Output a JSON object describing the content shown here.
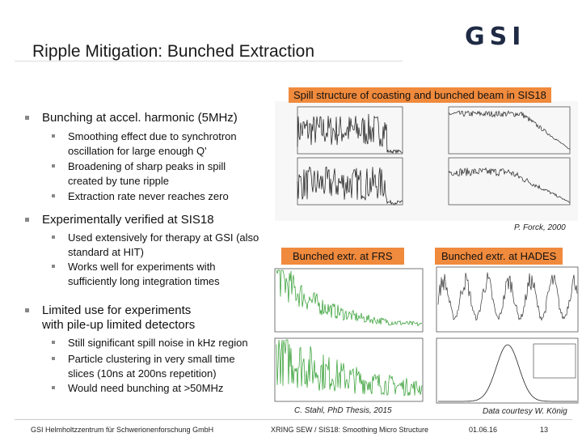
{
  "header": {
    "title": "Ripple Mitigation: Bunched Extraction",
    "logo": "GSI"
  },
  "bullets": [
    {
      "text": "Bunching at accel. harmonic (5MHz)",
      "items": [
        "Smoothing effect due to synchrotron oscillation for large enough Q'",
        "Broadening of sharp peaks in spill created by tune ripple",
        "Extraction rate never reaches zero"
      ]
    },
    {
      "text": "Experimentally verified at SIS18",
      "items": [
        "Used extensively for therapy at GSI (also standard at HIT)",
        "Works well for experiments with sufficiently long integration times"
      ]
    },
    {
      "text": "Limited use for experiments with pile-up limited detectors",
      "items": [
        "Still significant spill noise in kHz region",
        "Particle clustering in very small time slices (10ns at 200ns repetition)",
        "Would need bunching at >50MHz"
      ]
    }
  ],
  "figures": {
    "top": {
      "caption": "Spill structure of coasting and bunched beam in SIS18",
      "credit": "P. Forck, 2000"
    },
    "frs": {
      "caption": "Bunched extr. at FRS",
      "credit": "C. Stahl, PhD Thesis, 2015"
    },
    "hades": {
      "caption": "Bunched extr. at HADES",
      "credit": "Data courtesy W. König"
    }
  },
  "footer": {
    "institute": "GSI Helmholtzzentrum für Schwerionenforschung GmbH",
    "talk": "XRING SEW / SIS18: Smoothing Micro Structure",
    "date": "01.06.16",
    "page": "13"
  }
}
